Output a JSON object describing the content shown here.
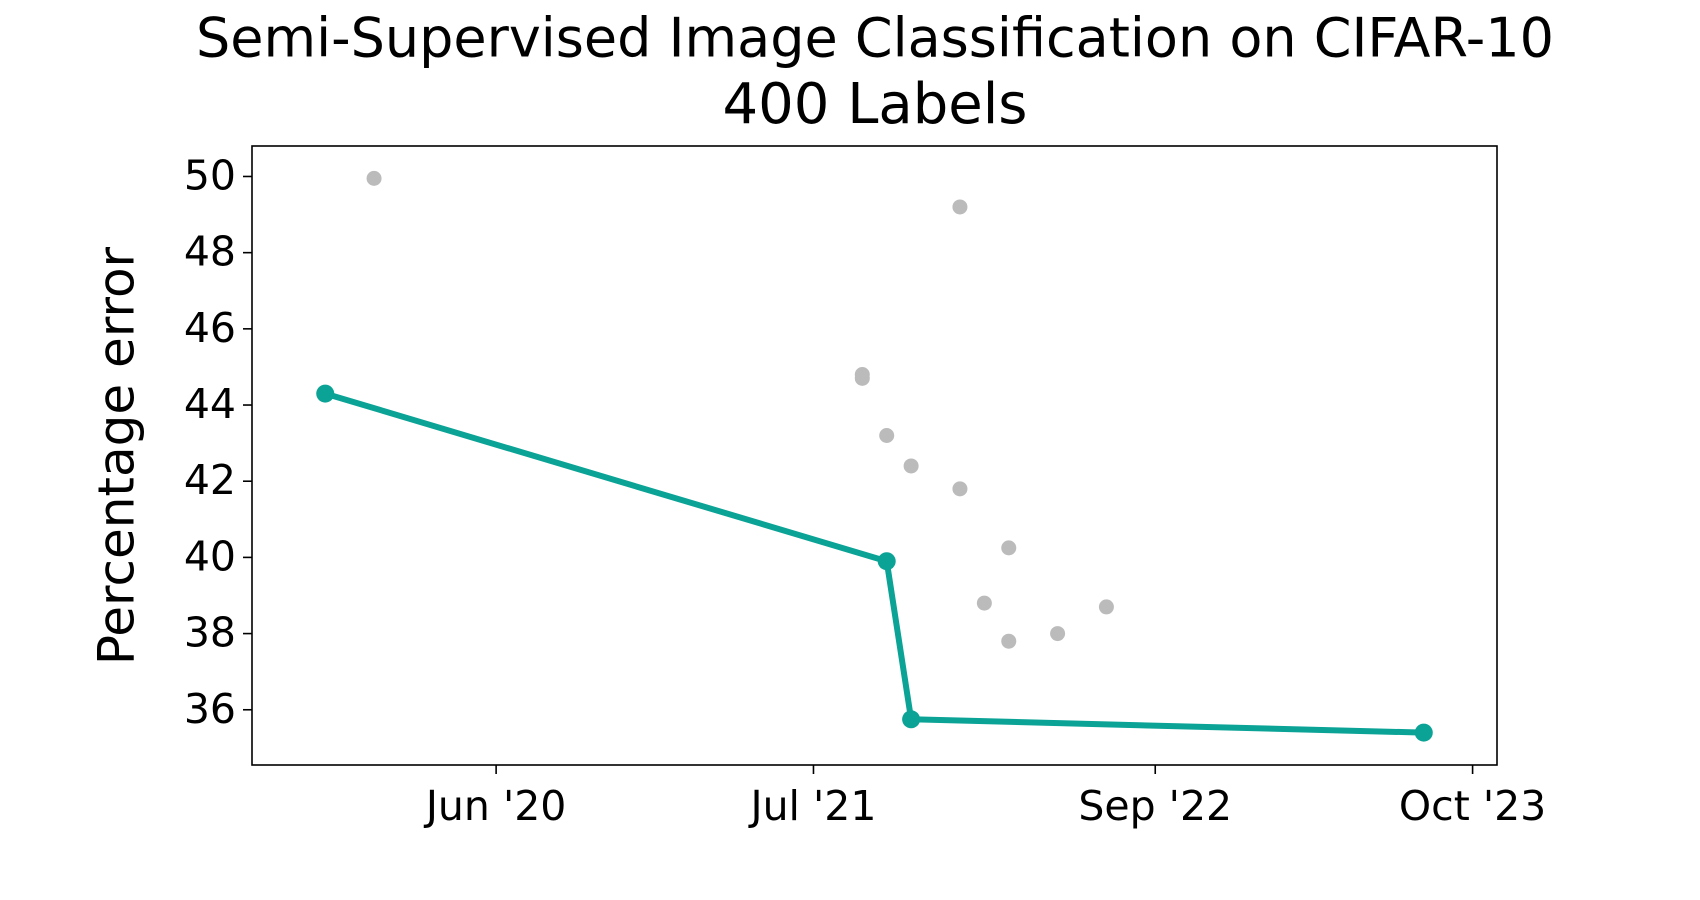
{
  "chart_data": {
    "type": "line",
    "title": "Semi-Supervised Image Classification on CIFAR-10",
    "subtitle": "400 Labels",
    "y_label": "Percentage error",
    "xlim": [
      "2019-08",
      "2023-11"
    ],
    "xticks": [
      {
        "value": "2020-06",
        "label": "Jun '20"
      },
      {
        "value": "2021-07",
        "label": "Jul '21"
      },
      {
        "value": "2022-09",
        "label": "Sep '22"
      },
      {
        "value": "2023-10",
        "label": "Oct '23"
      }
    ],
    "ylim": [
      34.55,
      50.8
    ],
    "yticks": [
      36,
      38,
      40,
      42,
      44,
      46,
      48,
      50
    ],
    "series": [
      {
        "type": "scatter",
        "color": "#bbbbbb",
        "x": [
          "2020-01",
          "2021-09",
          "2021-09",
          "2021-10",
          "2021-11",
          "2022-01",
          "2022-01",
          "2022-02",
          "2022-03",
          "2022-03",
          "2022-05",
          "2022-07"
        ],
        "values": [
          49.95,
          44.8,
          44.7,
          43.2,
          42.4,
          49.2,
          41.8,
          38.8,
          37.8,
          40.25,
          38.0,
          38.7
        ]
      },
      {
        "type": "line",
        "color": "#0aa396",
        "x": [
          "2019-11",
          "2021-10",
          "2021-11",
          "2023-08"
        ],
        "values": [
          44.3,
          39.9,
          35.75,
          35.4
        ]
      }
    ]
  }
}
